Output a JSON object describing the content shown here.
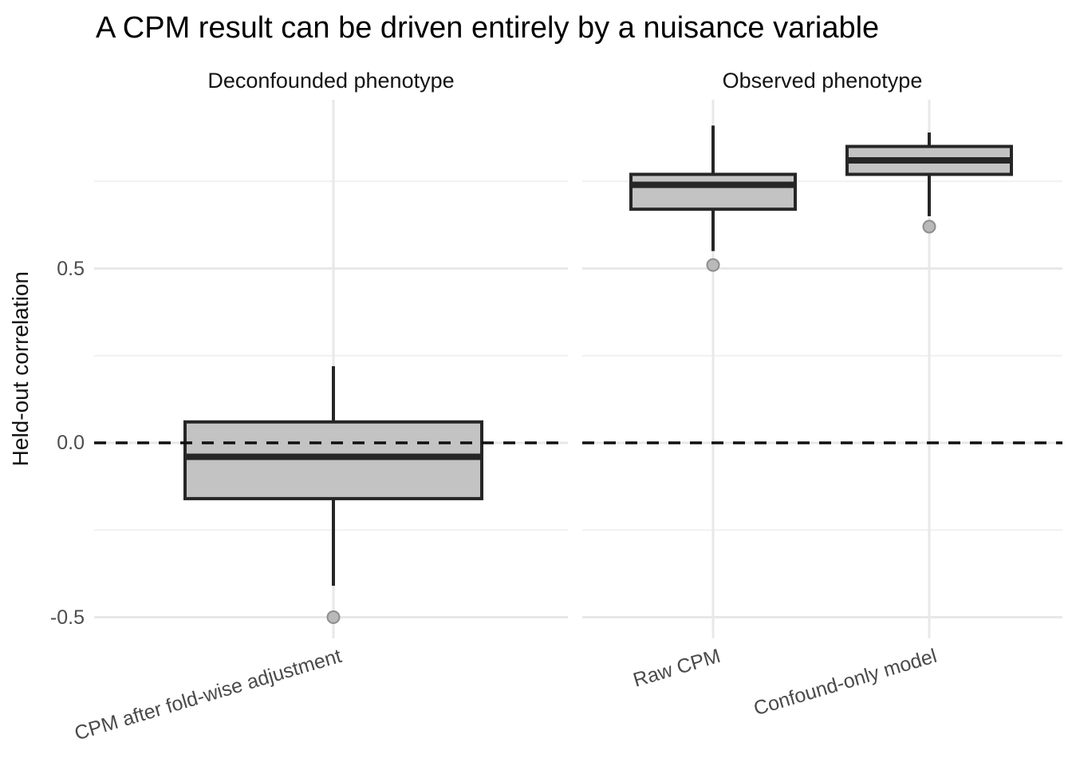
{
  "title": "A CPM result can be driven entirely by a nuisance variable",
  "y_axis": {
    "title": "Held-out correlation",
    "ticks": [
      {
        "value": 0.5,
        "label": "0.5"
      },
      {
        "value": 0.0,
        "label": "0.0"
      },
      {
        "value": -0.5,
        "label": "-0.5"
      }
    ]
  },
  "chart_data": {
    "type": "boxplot",
    "title": "A CPM result can be driven entirely by a nuisance variable",
    "xlabel": "",
    "ylabel": "Held-out correlation",
    "ylim": [
      -0.56,
      0.98
    ],
    "grid": "on",
    "legend": "none",
    "y_major_gridlines": [
      0.5,
      0.0,
      -0.5
    ],
    "y_minor_gridlines": [
      0.75,
      0.25,
      -0.25
    ],
    "reference_line": {
      "y": 0.0,
      "style": "dashed"
    },
    "facets": [
      {
        "label": "Deconfounded phenotype",
        "boxes": [
          {
            "category": "CPM after fold-wise adjustment",
            "whisker_low": -0.41,
            "q1": -0.16,
            "median": -0.04,
            "q3": 0.06,
            "whisker_high": 0.22,
            "outliers": [
              -0.5
            ]
          }
        ]
      },
      {
        "label": "Observed phenotype",
        "boxes": [
          {
            "category": "Raw CPM",
            "whisker_low": 0.55,
            "q1": 0.67,
            "median": 0.74,
            "q3": 0.77,
            "whisker_high": 0.91,
            "outliers": [
              0.51
            ]
          },
          {
            "category": "Confound-only model",
            "whisker_low": 0.65,
            "q1": 0.77,
            "median": 0.81,
            "q3": 0.85,
            "whisker_high": 0.89,
            "outliers": [
              0.62
            ]
          }
        ]
      }
    ],
    "colors": {
      "box_fill": "#c3c3c3",
      "box_border": "#262626",
      "median": "#262626",
      "outlier_fill": "#b9b9b9",
      "outlier_stroke": "#8e8e8e",
      "gridline_major": "#e8e8e8",
      "gridline_minor": "#f1f1f1",
      "reference_line": "#111111",
      "axis_text": "#4d4d4d",
      "title_text": "#000000"
    }
  }
}
